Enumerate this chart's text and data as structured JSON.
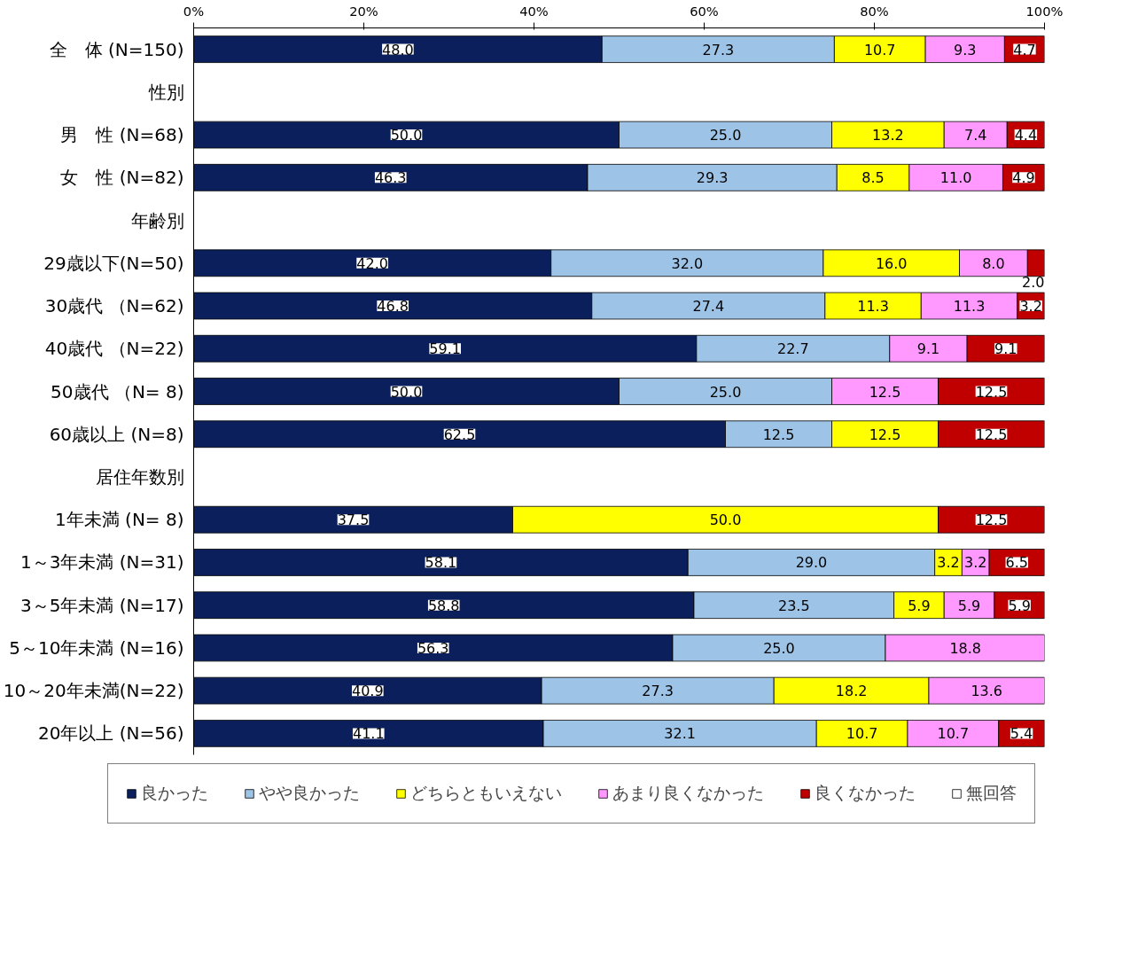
{
  "chart_data": {
    "type": "bar",
    "orientation": "horizontal",
    "stacked": true,
    "grid": false,
    "legend": "bottom",
    "categories": [
      "全　体 (N=150)",
      "性別",
      "男　性 (N=68)",
      "女　性 (N=82)",
      "年齢別",
      "29歳以下(N=50)",
      "30歳代 （N=62)",
      "40歳代 （N=22)",
      "50歳代 （N= 8)",
      "60歳以上 (N=8)",
      "居住年数別",
      "1年未満 (N= 8)",
      "1～3年未満 (N=31)",
      "3～5年未満 (N=17)",
      "5～10年未満 (N=16)",
      "10～20年未満(N=22)",
      "20年以上 (N=56)"
    ],
    "xlim": [
      0,
      100
    ],
    "xticks": [
      {
        "value": 0,
        "label": "0%"
      },
      {
        "value": 20,
        "label": "20%"
      },
      {
        "value": 40,
        "label": "40%"
      },
      {
        "value": 60,
        "label": "60%"
      },
      {
        "value": 80,
        "label": "80%"
      },
      {
        "value": 100,
        "label": "100%"
      }
    ],
    "series": [
      {
        "name": "良かった",
        "color": "#0a1f5c",
        "values": [
          48.0,
          null,
          50.0,
          46.3,
          null,
          42.0,
          46.8,
          59.1,
          50.0,
          62.5,
          null,
          37.5,
          58.1,
          58.8,
          56.3,
          40.9,
          41.1
        ],
        "value_labels": [
          "48.0",
          null,
          "50.0",
          "46.3",
          null,
          "42.0",
          "46.8",
          "59.1",
          "50.0",
          "62.5",
          null,
          "37.5",
          "58.1",
          "58.8",
          "56.3",
          "40.9",
          "41.1"
        ]
      },
      {
        "name": "やや良かった",
        "color": "#9dc3e6",
        "values": [
          27.3,
          null,
          25.0,
          29.3,
          null,
          32.0,
          27.4,
          22.7,
          25.0,
          12.5,
          null,
          0,
          29.0,
          23.5,
          25.0,
          27.3,
          32.1
        ],
        "value_labels": [
          "27.3",
          null,
          "25.0",
          "29.3",
          null,
          "32.0",
          "27.4",
          "22.7",
          "25.0",
          "12.5",
          null,
          null,
          "29.0",
          "23.5",
          "25.0",
          "27.3",
          "32.1"
        ]
      },
      {
        "name": "どちらともいえない",
        "color": "#ffff00",
        "values": [
          10.7,
          null,
          13.2,
          8.5,
          null,
          16.0,
          11.3,
          0,
          0,
          12.5,
          null,
          50.0,
          3.2,
          5.9,
          0,
          18.2,
          10.7
        ],
        "value_labels": [
          "10.7",
          null,
          "13.2",
          "8.5",
          null,
          "16.0",
          "11.3",
          null,
          null,
          "12.5",
          null,
          "50.0",
          "3.2",
          "5.9",
          null,
          "18.2",
          "10.7"
        ]
      },
      {
        "name": "あまり良くなかった",
        "color": "#ff99ff",
        "values": [
          9.3,
          null,
          7.4,
          11.0,
          null,
          8.0,
          11.3,
          9.1,
          12.5,
          0,
          null,
          0,
          3.2,
          5.9,
          18.8,
          13.6,
          10.7
        ],
        "value_labels": [
          "9.3",
          null,
          "7.4",
          "11.0",
          null,
          "8.0",
          "11.3",
          "9.1",
          "12.5",
          null,
          null,
          null,
          "3.2",
          "5.9",
          "18.8",
          "13.6",
          "10.7"
        ]
      },
      {
        "name": "良くなかった",
        "color": "#c00000",
        "values": [
          4.7,
          null,
          4.4,
          4.9,
          null,
          2.0,
          3.2,
          9.1,
          12.5,
          12.5,
          null,
          12.5,
          6.5,
          5.9,
          0,
          0,
          5.4
        ],
        "value_labels": [
          "4.7",
          null,
          "4.4",
          "4.9",
          null,
          "2.0",
          "3.2",
          "9.1",
          "12.5",
          "12.5",
          null,
          "12.5",
          "6.5",
          "5.9",
          null,
          null,
          "5.4"
        ]
      },
      {
        "name": "無回答",
        "color": "#ffffff",
        "values": [
          0,
          null,
          0,
          0,
          null,
          0,
          0,
          0,
          0,
          0,
          null,
          0,
          0,
          0,
          0,
          0,
          0
        ]
      }
    ]
  }
}
